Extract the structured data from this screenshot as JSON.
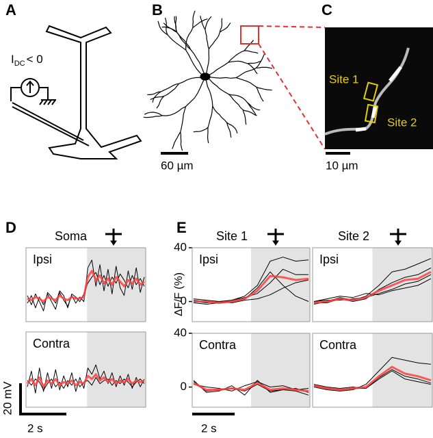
{
  "panel_labels": [
    "A",
    "B",
    "C",
    "D",
    "E"
  ],
  "schematic": {
    "current_label": "I",
    "current_subscript": "DC",
    "current_relation": "< 0"
  },
  "scale_bars": {
    "B": "60 µm",
    "C": "10 µm",
    "D_voltage": "20 mV",
    "D_time": "2 s",
    "E_time": "2 s"
  },
  "sites": [
    "Site 1",
    "Site 2"
  ],
  "column_titles": [
    "Soma",
    "Site 1",
    "Site 2"
  ],
  "y_label": "ΔF/F (%)",
  "chart_data": [
    {
      "type": "line",
      "title": "Ipsi",
      "ylim": [
        -15,
        33
      ],
      "series": [
        {
          "color": "#000000",
          "values": [
            -3,
            2,
            -6,
            1,
            -4,
            3,
            -2,
            -7,
            4,
            -1,
            -5,
            2,
            -3,
            1,
            -2,
            20,
            25,
            8,
            22,
            5,
            19,
            3,
            21,
            7,
            2,
            18,
            6,
            20,
            4,
            14
          ]
        },
        {
          "color": "#000000",
          "values": [
            2,
            -4,
            3,
            -2,
            -8,
            4,
            1,
            -3,
            5,
            2,
            -6,
            3,
            1,
            -2,
            3,
            10,
            14,
            17,
            9,
            15,
            8,
            14,
            10,
            16,
            12,
            7,
            15,
            9,
            13,
            8
          ]
        },
        {
          "color": "#ff4040",
          "values": [
            0,
            -1,
            1,
            0,
            -2,
            1,
            0,
            -1,
            2,
            0,
            -1,
            1,
            0,
            0,
            1,
            14,
            18,
            12,
            15,
            10,
            13,
            9,
            14,
            11,
            8,
            12,
            10,
            13,
            9,
            11
          ]
        }
      ]
    },
    {
      "type": "line",
      "title": "Contra",
      "ylim": [
        -15,
        33
      ],
      "series": [
        {
          "color": "#000000",
          "values": [
            -2,
            8,
            -6,
            10,
            -5,
            7,
            -3,
            9,
            -4,
            5,
            -2,
            7,
            -5,
            4,
            -3,
            10,
            6,
            12,
            3,
            8,
            0,
            7,
            -2,
            5,
            -1,
            6,
            -3,
            4,
            -2,
            3
          ]
        },
        {
          "color": "#000000",
          "values": [
            2,
            -1,
            3,
            1,
            -4,
            0,
            3,
            -2,
            1,
            -3,
            2,
            -1,
            3,
            -2,
            1,
            2,
            -1,
            4,
            0,
            2,
            3,
            -1,
            2,
            0,
            3,
            1,
            -2,
            1,
            3,
            0
          ]
        },
        {
          "color": "#ff4040",
          "values": [
            0,
            3,
            -1,
            4,
            -2,
            2,
            0,
            3,
            -1,
            1,
            0,
            2,
            -1,
            1,
            0,
            5,
            3,
            6,
            2,
            4,
            1,
            3,
            0,
            2,
            1,
            3,
            0,
            2,
            1,
            2
          ]
        }
      ]
    },
    {
      "type": "line",
      "title": "Ipsi",
      "ylim": [
        -15,
        40
      ],
      "yticks": [
        0,
        40
      ],
      "series": [
        {
          "color": "#000000",
          "values": [
            2,
            1,
            0,
            1,
            4,
            12,
            30,
            33,
            30,
            31
          ]
        },
        {
          "color": "#000000",
          "values": [
            -1,
            -2,
            -1,
            0,
            2,
            10,
            22,
            12,
            4,
            0
          ]
        },
        {
          "color": "#000000",
          "values": [
            1,
            0,
            -1,
            1,
            3,
            6,
            14,
            24,
            20,
            20
          ]
        },
        {
          "color": "#000000",
          "values": [
            0,
            -1,
            0,
            -1,
            1,
            2,
            5,
            10,
            14,
            16
          ]
        },
        {
          "color": "#ff4040",
          "values": [
            0,
            0,
            -1,
            0,
            2,
            8,
            19,
            18,
            16,
            17
          ]
        }
      ]
    },
    {
      "type": "line",
      "title": "Ipsi",
      "ylim": [
        -15,
        40
      ],
      "series": [
        {
          "color": "#000000",
          "values": [
            -2,
            0,
            3,
            1,
            4,
            12,
            22,
            24,
            28,
            32
          ]
        },
        {
          "color": "#000000",
          "values": [
            0,
            1,
            1,
            2,
            3,
            6,
            9,
            13,
            15,
            20
          ]
        },
        {
          "color": "#000000",
          "values": [
            -1,
            -1,
            2,
            0,
            2,
            9,
            14,
            18,
            20,
            25
          ]
        },
        {
          "color": "#000000",
          "values": [
            0,
            2,
            4,
            3,
            6,
            5,
            8,
            10,
            12,
            17
          ]
        },
        {
          "color": "#ff4040",
          "values": [
            -1,
            0,
            2,
            1,
            3,
            8,
            12,
            16,
            17,
            22
          ]
        }
      ]
    },
    {
      "type": "line",
      "title": "Contra",
      "ylim": [
        -15,
        40
      ],
      "yticks": [
        0,
        40
      ],
      "series": [
        {
          "color": "#000000",
          "values": [
            5,
            -4,
            -3,
            1,
            -6,
            5,
            -4,
            -2,
            -3,
            -6
          ]
        },
        {
          "color": "#000000",
          "values": [
            2,
            0,
            -1,
            -3,
            1,
            4,
            0,
            1,
            -2,
            -1
          ]
        },
        {
          "color": "#000000",
          "values": [
            4,
            -3,
            -2,
            -1,
            -3,
            2,
            -3,
            -2,
            -1,
            -4
          ]
        },
        {
          "color": "#ff4040",
          "values": [
            3,
            -2,
            -2,
            -1,
            -2,
            3,
            -2,
            -1,
            -2,
            -3
          ]
        }
      ]
    },
    {
      "type": "line",
      "title": "Contra",
      "ylim": [
        -15,
        40
      ],
      "series": [
        {
          "color": "#000000",
          "values": [
            0,
            -2,
            -3,
            -2,
            2,
            12,
            22,
            20,
            18,
            17
          ]
        },
        {
          "color": "#000000",
          "values": [
            2,
            0,
            -1,
            0,
            -1,
            6,
            12,
            6,
            4,
            2
          ]
        },
        {
          "color": "#000000",
          "values": [
            1,
            -1,
            -2,
            -1,
            -1,
            7,
            13,
            8,
            6,
            3
          ]
        },
        {
          "color": "#ff4040",
          "values": [
            1,
            -1,
            -2,
            -1,
            0,
            8,
            15,
            10,
            8,
            5
          ]
        }
      ]
    }
  ]
}
